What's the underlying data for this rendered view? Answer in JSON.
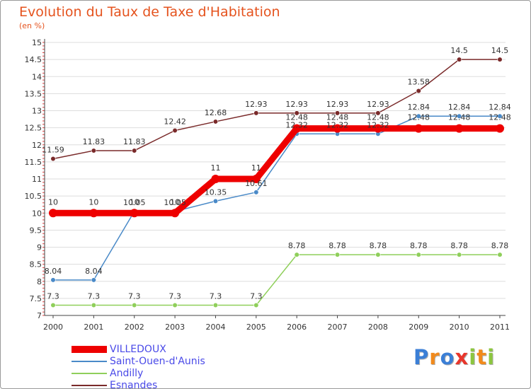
{
  "chart_data": {
    "type": "line",
    "title": "Evolution du Taux de Taxe d'Habitation",
    "subtitle": "(en %)",
    "x": [
      "2000",
      "2001",
      "2002",
      "2003",
      "2004",
      "2005",
      "2006",
      "2007",
      "2008",
      "2009",
      "2010",
      "2011"
    ],
    "y_ticks": [
      "7",
      "7.5",
      "8",
      "8.5",
      "9",
      "9.5",
      "10",
      "10.5",
      "11",
      "11.5",
      "12",
      "12.5",
      "13",
      "13.5",
      "14",
      "14.5",
      "15"
    ],
    "ylim": [
      7,
      15
    ],
    "grid": "horizontal",
    "legend_position": "bottom-left",
    "series": [
      {
        "name": "VILLEDOUX",
        "color": "#ee0000",
        "values": [
          10,
          10,
          10,
          10,
          11,
          11,
          12.48,
          12.48,
          12.48,
          12.48,
          12.48,
          12.48
        ],
        "labels": [
          "10",
          "10",
          "10",
          "10",
          "11",
          "11",
          "12.48",
          "12.48",
          "12.48",
          "12.48",
          "12.48",
          "12.48"
        ]
      },
      {
        "name": "Saint-Ouen-d'Aunis",
        "color": "#4a8ac8",
        "values": [
          8.04,
          8.04,
          10.05,
          10.05,
          10.35,
          10.61,
          12.32,
          12.32,
          12.32,
          12.84,
          12.84,
          12.84
        ],
        "labels": [
          "8.04",
          "8.04",
          "10.05",
          "10.05",
          "10.35",
          "10.61",
          "12.32",
          "12.32",
          "12.32",
          "12.84",
          "12.84",
          "12.84"
        ]
      },
      {
        "name": "Andilly",
        "color": "#8fcf5a",
        "values": [
          7.3,
          7.3,
          7.3,
          7.3,
          7.3,
          7.3,
          8.78,
          8.78,
          8.78,
          8.78,
          8.78,
          8.78
        ],
        "labels": [
          "7.3",
          "7.3",
          "7.3",
          "7.3",
          "7.3",
          "7.3",
          "8.78",
          "8.78",
          "8.78",
          "8.78",
          "8.78",
          "8.78"
        ]
      },
      {
        "name": "Esnandes",
        "color": "#7a2a2a",
        "values": [
          11.59,
          11.83,
          11.83,
          12.42,
          12.68,
          12.93,
          12.93,
          12.93,
          12.93,
          13.58,
          14.5,
          14.5
        ],
        "labels": [
          "11.59",
          "11.83",
          "11.83",
          "12.42",
          "12.68",
          "12.93",
          "12.93",
          "12.93",
          "12.93",
          "13.58",
          "14.5",
          "14.5"
        ]
      }
    ]
  },
  "logo": {
    "letters": [
      "P",
      "r",
      "o",
      "x",
      "i",
      "t",
      "i"
    ],
    "colors": [
      "#3b7fd6",
      "#f18a1c",
      "#3b7fd6",
      "#e8362b",
      "#8cc63f",
      "#f18a1c",
      "#8cc63f"
    ]
  }
}
